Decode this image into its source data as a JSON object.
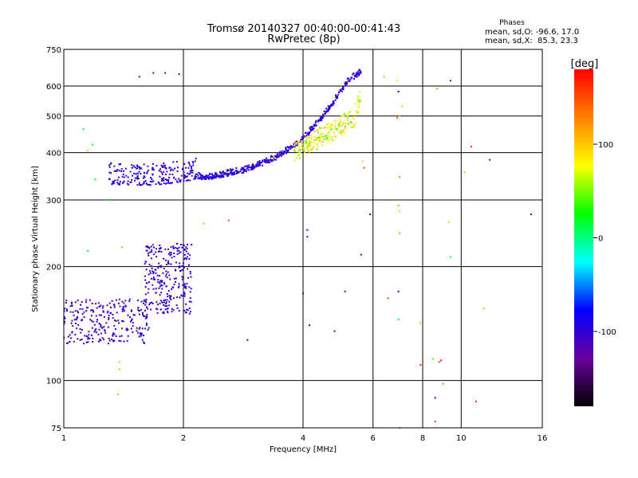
{
  "chart_data": {
    "type": "scatter",
    "title": "Tromsø 20140327 00:40:00-00:41:43",
    "subtitle": "RwPretec (8p)",
    "stats": {
      "header": "Phases",
      "line_o": "mean, sd,O: -96.6, 17.0",
      "line_x": "mean, sd,X:  85.3, 23.3"
    },
    "xlabel": "Frequency [MHz]",
    "ylabel": "Stationary phase Virtual Height [km]",
    "x_scale": "log",
    "y_scale": "log",
    "xlim": [
      1,
      16
    ],
    "ylim": [
      75,
      750
    ],
    "x_ticks": [
      1,
      2,
      4,
      6,
      8,
      10,
      16
    ],
    "x_tick_labels": [
      "1",
      "2",
      "4",
      "6",
      "8",
      "10",
      "16"
    ],
    "y_ticks": [
      75,
      100,
      200,
      300,
      400,
      500,
      600,
      750
    ],
    "y_tick_labels": [
      "75",
      "100",
      "200",
      "300",
      "400",
      "500",
      "600",
      "750"
    ],
    "grid": true,
    "colorbar": {
      "label": "[deg]",
      "range": [
        -180,
        180
      ],
      "ticks": [
        100,
        0,
        -100
      ],
      "tick_labels": [
        "100",
        "0",
        "-100"
      ],
      "stops": [
        "#000000",
        "#6a00a0",
        "#0000ff",
        "#00ffff",
        "#00ff00",
        "#ffff00",
        "#ff8000",
        "#ff0000"
      ]
    },
    "traces": [
      {
        "kind": "E-layer cluster",
        "x_range": [
          1.0,
          1.65
        ],
        "height_range": [
          125,
          165
        ],
        "phase": -105
      },
      {
        "kind": "Es/F1 cluster",
        "x_range": [
          1.6,
          2.1
        ],
        "height_range": [
          150,
          230
        ],
        "phase": -100
      },
      {
        "kind": "F-layer O trace",
        "x": [
          1.3,
          1.5,
          1.7,
          2.0,
          2.4,
          2.9,
          3.4,
          3.8,
          4.1,
          4.4,
          4.7,
          5.0,
          5.2,
          5.6
        ],
        "height": [
          330,
          328,
          328,
          335,
          345,
          360,
          385,
          415,
          445,
          485,
          530,
          580,
          620,
          650
        ],
        "phase": -100
      },
      {
        "kind": "F-layer X trace",
        "x": [
          3.8,
          4.2,
          4.5,
          4.8,
          5.1,
          5.4,
          5.6
        ],
        "height": [
          400,
          425,
          445,
          460,
          480,
          500,
          560
        ],
        "phase": 85
      }
    ],
    "sparse_points": [
      {
        "x": 1.55,
        "y": 635,
        "phase": -90
      },
      {
        "x": 1.68,
        "y": 650,
        "phase": -120
      },
      {
        "x": 1.8,
        "y": 650,
        "phase": -110
      },
      {
        "x": 1.95,
        "y": 645,
        "phase": -105
      },
      {
        "x": 1.12,
        "y": 462,
        "phase": 20
      },
      {
        "x": 1.15,
        "y": 405,
        "phase": 100
      },
      {
        "x": 1.18,
        "y": 420,
        "phase": 30
      },
      {
        "x": 1.2,
        "y": 340,
        "phase": 25
      },
      {
        "x": 1.15,
        "y": 220,
        "phase": 20
      },
      {
        "x": 1.4,
        "y": 225,
        "phase": 120
      },
      {
        "x": 1.38,
        "y": 112,
        "phase": 100
      },
      {
        "x": 1.38,
        "y": 107,
        "phase": 110
      },
      {
        "x": 1.37,
        "y": 92,
        "phase": 110
      },
      {
        "x": 1.3,
        "y": 300,
        "phase": 20
      },
      {
        "x": 2.25,
        "y": 260,
        "phase": 40
      },
      {
        "x": 2.6,
        "y": 265,
        "phase": 150
      },
      {
        "x": 2.9,
        "y": 128,
        "phase": -110
      },
      {
        "x": 4.1,
        "y": 250,
        "phase": -100
      },
      {
        "x": 4.1,
        "y": 240,
        "phase": -110
      },
      {
        "x": 4.0,
        "y": 170,
        "phase": -120
      },
      {
        "x": 4.15,
        "y": 140,
        "phase": -120
      },
      {
        "x": 4.8,
        "y": 135,
        "phase": -110
      },
      {
        "x": 5.1,
        "y": 172,
        "phase": -110
      },
      {
        "x": 5.6,
        "y": 215,
        "phase": -110
      },
      {
        "x": 5.65,
        "y": 380,
        "phase": 100
      },
      {
        "x": 5.7,
        "y": 365,
        "phase": 150
      },
      {
        "x": 5.9,
        "y": 275,
        "phase": -100
      },
      {
        "x": 6.4,
        "y": 635,
        "phase": 110
      },
      {
        "x": 6.9,
        "y": 620,
        "phase": 80
      },
      {
        "x": 6.95,
        "y": 580,
        "phase": -110
      },
      {
        "x": 6.9,
        "y": 495,
        "phase": 140
      },
      {
        "x": 7.0,
        "y": 500,
        "phase": 120
      },
      {
        "x": 7.0,
        "y": 345,
        "phase": 120
      },
      {
        "x": 6.95,
        "y": 290,
        "phase": 120
      },
      {
        "x": 7.0,
        "y": 280,
        "phase": 100
      },
      {
        "x": 7.0,
        "y": 245,
        "phase": 40
      },
      {
        "x": 6.55,
        "y": 165,
        "phase": 150
      },
      {
        "x": 6.95,
        "y": 172,
        "phase": -100
      },
      {
        "x": 6.95,
        "y": 145,
        "phase": 10
      },
      {
        "x": 7.0,
        "y": 75,
        "phase": 10
      },
      {
        "x": 7.1,
        "y": 530,
        "phase": 100
      },
      {
        "x": 7.9,
        "y": 110,
        "phase": 160
      },
      {
        "x": 8.0,
        "y": 112,
        "phase": 150
      },
      {
        "x": 7.9,
        "y": 142,
        "phase": 110
      },
      {
        "x": 8.5,
        "y": 114,
        "phase": 40
      },
      {
        "x": 8.9,
        "y": 113,
        "phase": 170
      },
      {
        "x": 8.8,
        "y": 112,
        "phase": 150
      },
      {
        "x": 9.0,
        "y": 98,
        "phase": 20
      },
      {
        "x": 8.6,
        "y": 90,
        "phase": -110
      },
      {
        "x": 8.6,
        "y": 78,
        "phase": 160
      },
      {
        "x": 8.7,
        "y": 590,
        "phase": 130
      },
      {
        "x": 9.4,
        "y": 620,
        "phase": -120
      },
      {
        "x": 9.3,
        "y": 262,
        "phase": 100
      },
      {
        "x": 9.4,
        "y": 212,
        "phase": 20
      },
      {
        "x": 10.2,
        "y": 355,
        "phase": 110
      },
      {
        "x": 10.6,
        "y": 415,
        "phase": 160
      },
      {
        "x": 11.4,
        "y": 155,
        "phase": 110
      },
      {
        "x": 11.8,
        "y": 383,
        "phase": -130
      },
      {
        "x": 15.0,
        "y": 275,
        "phase": -110
      },
      {
        "x": 10.9,
        "y": 88,
        "phase": 160
      }
    ]
  }
}
